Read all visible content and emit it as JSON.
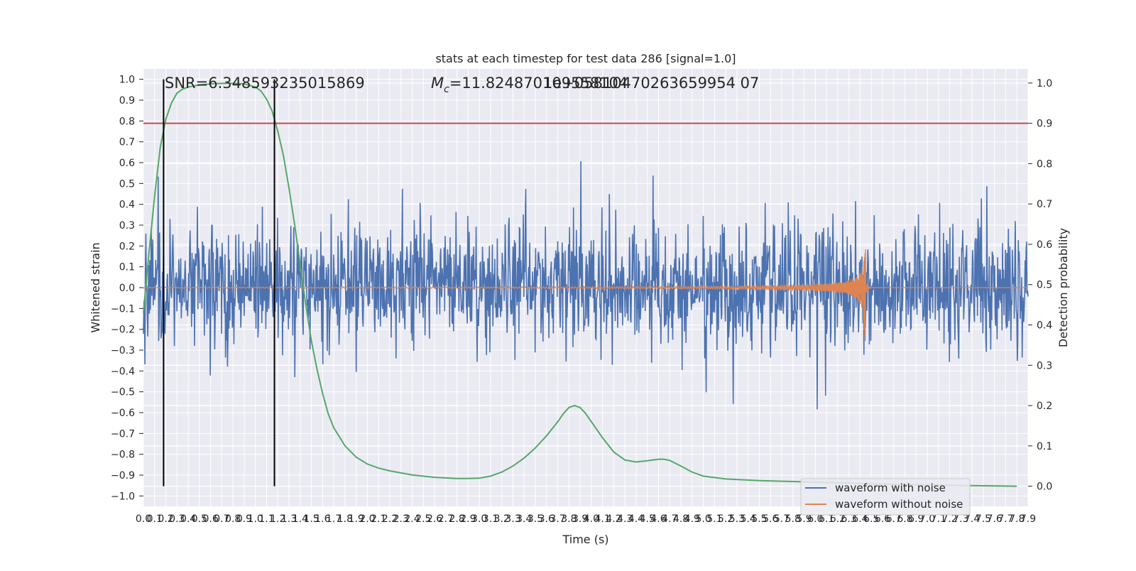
{
  "chart_data": {
    "type": "line",
    "title": "stats at each timestep for test data 286 [signal=1.0]",
    "xlabel": "Time (s)",
    "ylabel": "Whitened strain",
    "y2label": "Detection probability",
    "xlim": [
      0.0,
      7.9
    ],
    "ylim": [
      -1.05,
      1.05
    ],
    "y2lim": [
      -0.05,
      1.035
    ],
    "yticks": [
      -1.0,
      -0.9,
      -0.8,
      -0.7,
      -0.6,
      -0.5,
      -0.4,
      -0.3,
      -0.2,
      -0.1,
      0.0,
      0.1,
      0.2,
      0.3,
      0.4,
      0.5,
      0.6,
      0.7,
      0.8,
      0.9,
      1.0
    ],
    "yticklabels": [
      "−1.0",
      "−0.9",
      "−0.8",
      "−0.7",
      "−0.6",
      "−0.5",
      "−0.4",
      "−0.3",
      "−0.2",
      "−0.1",
      "0.0",
      "0.1",
      "0.2",
      "0.3",
      "0.4",
      "0.5",
      "0.6",
      "0.7",
      "0.8",
      "0.9",
      "1.0"
    ],
    "y2ticks": [
      0.0,
      0.1,
      0.2,
      0.3,
      0.4,
      0.5,
      0.6,
      0.7,
      0.8,
      0.9,
      1.0
    ],
    "y2ticklabels": [
      "0.0",
      "0.1",
      "0.2",
      "0.3",
      "0.4",
      "0.5",
      "0.6",
      "0.7",
      "0.8",
      "0.9",
      "1.0"
    ],
    "xtick_step": 0.1,
    "annotations": {
      "snr": "SNR=6.348593235015869",
      "mc_symbol": "M",
      "mc_sub": "c",
      "mc_value": "=11.824870109558104",
      "overlap": "1e+05810470263659954 07"
    },
    "threshold": {
      "y2": 0.9,
      "color": "#c44e52"
    },
    "vlines": [
      0.18,
      1.17
    ],
    "detection_probability": {
      "name": "",
      "color": "#55a868",
      "x": [
        0.0,
        0.05,
        0.1,
        0.15,
        0.2,
        0.25,
        0.3,
        0.35,
        0.4,
        0.5,
        0.6,
        0.7,
        0.8,
        0.9,
        1.0,
        1.05,
        1.1,
        1.15,
        1.2,
        1.25,
        1.3,
        1.35,
        1.4,
        1.45,
        1.5,
        1.55,
        1.6,
        1.65,
        1.7,
        1.8,
        1.9,
        2.0,
        2.1,
        2.2,
        2.4,
        2.6,
        2.8,
        2.9,
        3.0,
        3.1,
        3.2,
        3.3,
        3.4,
        3.5,
        3.6,
        3.7,
        3.75,
        3.8,
        3.85,
        3.9,
        3.95,
        4.0,
        4.1,
        4.2,
        4.3,
        4.4,
        4.5,
        4.6,
        4.65,
        4.7,
        4.8,
        4.9,
        5.0,
        5.2,
        5.5,
        6.0,
        6.5,
        7.0,
        7.5,
        7.8
      ],
      "y": [
        0.43,
        0.58,
        0.72,
        0.84,
        0.91,
        0.95,
        0.975,
        0.985,
        0.99,
        0.995,
        0.998,
        0.999,
        0.999,
        0.998,
        0.99,
        0.98,
        0.96,
        0.93,
        0.88,
        0.82,
        0.74,
        0.65,
        0.55,
        0.45,
        0.36,
        0.29,
        0.23,
        0.18,
        0.145,
        0.1,
        0.072,
        0.055,
        0.045,
        0.038,
        0.028,
        0.022,
        0.019,
        0.019,
        0.02,
        0.025,
        0.035,
        0.05,
        0.07,
        0.095,
        0.125,
        0.16,
        0.18,
        0.195,
        0.2,
        0.195,
        0.18,
        0.16,
        0.12,
        0.085,
        0.065,
        0.06,
        0.063,
        0.067,
        0.067,
        0.064,
        0.05,
        0.035,
        0.025,
        0.018,
        0.014,
        0.01,
        0.006,
        0.003,
        0.001,
        0.0
      ]
    },
    "waveform_with_noise": {
      "name": "waveform with noise",
      "color": "#4c72b0",
      "samples": 1800,
      "seed": 286
    },
    "waveform_without_noise": {
      "name": "waveform without noise",
      "color": "#dd8452",
      "merger_time": 6.45,
      "peak_amplitude": 0.19,
      "min_amplitude": -0.28
    },
    "legend_position": "lower right",
    "grid": true
  }
}
